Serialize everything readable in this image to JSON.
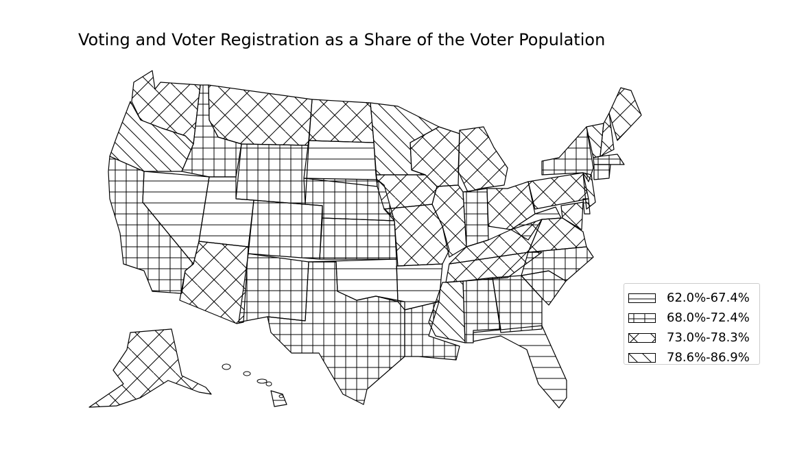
{
  "title": "Voting and Voter Registration as a Share of the Voter Population",
  "legend": {
    "items": [
      {
        "label": "62.0%-67.4%",
        "pattern": "horizontal"
      },
      {
        "label": "68.0%-72.4%",
        "pattern": "grid"
      },
      {
        "label": "73.0%-78.3%",
        "pattern": "crosshatch"
      },
      {
        "label": "78.6%-86.9%",
        "pattern": "diagonal"
      }
    ]
  },
  "colors": {
    "stroke": "#000000",
    "fill": "#ffffff"
  },
  "chart_data": {
    "type": "choropleth",
    "map": "United States by state",
    "bins": [
      "62.0%-67.4%",
      "68.0%-72.4%",
      "73.0%-78.3%",
      "78.6%-86.9%"
    ],
    "states": {
      "Washington": "73.0%-78.3%",
      "Oregon": "78.6%-86.9%",
      "California": "68.0%-72.4%",
      "Nevada": "62.0%-67.4%",
      "Idaho": "68.0%-72.4%",
      "Montana": "73.0%-78.3%",
      "Wyoming": "68.0%-72.4%",
      "Utah": "62.0%-67.4%",
      "Arizona": "73.0%-78.3%",
      "Colorado": "68.0%-72.4%",
      "New Mexico": "68.0%-72.4%",
      "North Dakota": "73.0%-78.3%",
      "South Dakota": "62.0%-67.4%",
      "Nebraska": "68.0%-72.4%",
      "Kansas": "68.0%-72.4%",
      "Oklahoma": "62.0%-67.4%",
      "Texas": "68.0%-72.4%",
      "Minnesota": "78.6%-86.9%",
      "Iowa": "73.0%-78.3%",
      "Missouri": "73.0%-78.3%",
      "Arkansas": "62.0%-67.4%",
      "Louisiana": "68.0%-72.4%",
      "Wisconsin": "73.0%-78.3%",
      "Illinois": "73.0%-78.3%",
      "Michigan": "73.0%-78.3%",
      "Indiana": "68.0%-72.4%",
      "Ohio": "73.0%-78.3%",
      "Kentucky": "73.0%-78.3%",
      "Tennessee": "73.0%-78.3%",
      "Mississippi": "78.6%-86.9%",
      "Alabama": "68.0%-72.4%",
      "Georgia": "68.0%-72.4%",
      "Florida": "62.0%-67.4%",
      "South Carolina": "68.0%-72.4%",
      "North Carolina": "68.0%-72.4%",
      "Virginia": "73.0%-78.3%",
      "West Virginia": "62.0%-67.4%",
      "Pennsylvania": "73.0%-78.3%",
      "New York": "68.0%-72.4%",
      "Vermont": "78.6%-86.9%",
      "New Hampshire": "73.0%-78.3%",
      "Maine": "73.0%-78.3%",
      "Massachusetts": "68.0%-72.4%",
      "Connecticut": "68.0%-72.4%",
      "New Jersey": "78.6%-86.9%",
      "Maryland": "73.0%-78.3%",
      "Delaware": "62.0%-67.4%",
      "Alaska": "73.0%-78.3%",
      "Hawaii": "62.0%-67.4%"
    }
  }
}
